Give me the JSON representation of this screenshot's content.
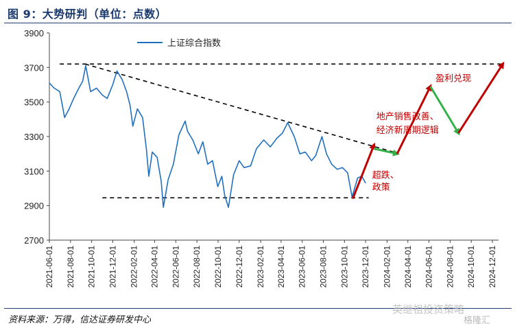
{
  "header": {
    "title": "图 9：大势研判（单位：点数）"
  },
  "footer": {
    "source": "资料来源：万得，信达证券研发中心"
  },
  "watermark": {
    "text": "英继祖投资策略",
    "brand": "格隆汇"
  },
  "colors": {
    "series": "#1f6fbf",
    "red_arrow": "#c00000",
    "green_arrow": "#33b24a",
    "dashed": "#000000",
    "title": "#1a3a6e"
  },
  "chart_data": {
    "type": "line",
    "title": "",
    "xlabel": "",
    "ylabel": "",
    "ylim": [
      2700,
      3900
    ],
    "yticks": [
      2700,
      2900,
      3100,
      3300,
      3500,
      3700,
      3900
    ],
    "x_tick_labels": [
      "2021-06-01",
      "2021-08-01",
      "2021-10-01",
      "2021-12-01",
      "2022-02-01",
      "2022-04-01",
      "2022-06-01",
      "2022-08-01",
      "2022-10-01",
      "2022-12-01",
      "2023-02-01",
      "2023-04-01",
      "2023-06-01",
      "2023-08-01",
      "2023-10-01",
      "2023-12-01",
      "2024-02-01",
      "2024-04-01",
      "2024-06-01",
      "2024-08-01",
      "2024-10-01",
      "2024-12-01"
    ],
    "legend": {
      "position": "top-left",
      "entries": [
        "上证综合指数"
      ]
    },
    "grid": false,
    "series": [
      {
        "name": "上证综合指数",
        "x": [
          "2021-06-01",
          "2021-06-15",
          "2021-07-01",
          "2021-07-15",
          "2021-07-28",
          "2021-08-10",
          "2021-08-25",
          "2021-09-05",
          "2021-09-14",
          "2021-09-28",
          "2021-10-15",
          "2021-11-01",
          "2021-11-15",
          "2021-12-01",
          "2021-12-13",
          "2021-12-28",
          "2022-01-10",
          "2022-01-20",
          "2022-01-28",
          "2022-02-10",
          "2022-02-25",
          "2022-03-08",
          "2022-03-15",
          "2022-03-25",
          "2022-04-08",
          "2022-04-20",
          "2022-04-26",
          "2022-05-10",
          "2022-05-25",
          "2022-06-10",
          "2022-06-28",
          "2022-07-05",
          "2022-07-20",
          "2022-08-05",
          "2022-08-18",
          "2022-09-01",
          "2022-09-15",
          "2022-09-30",
          "2022-10-12",
          "2022-10-20",
          "2022-10-31",
          "2022-11-15",
          "2022-12-01",
          "2022-12-15",
          "2023-01-03",
          "2023-01-20",
          "2023-02-10",
          "2023-03-01",
          "2023-03-20",
          "2023-04-05",
          "2023-04-20",
          "2023-05-09",
          "2023-05-25",
          "2023-06-10",
          "2023-06-28",
          "2023-07-10",
          "2023-07-28",
          "2023-08-10",
          "2023-08-25",
          "2023-09-10",
          "2023-09-25",
          "2023-10-10",
          "2023-10-23",
          "2023-11-08",
          "2023-11-20",
          "2023-12-01"
        ],
        "values": [
          3610,
          3580,
          3560,
          3410,
          3460,
          3520,
          3580,
          3620,
          3710,
          3560,
          3580,
          3540,
          3520,
          3600,
          3680,
          3630,
          3560,
          3480,
          3360,
          3460,
          3410,
          3230,
          3070,
          3210,
          3180,
          3040,
          2890,
          3050,
          3140,
          3310,
          3390,
          3330,
          3280,
          3200,
          3270,
          3140,
          3160,
          3010,
          3070,
          2960,
          2890,
          3080,
          3160,
          3120,
          3130,
          3230,
          3280,
          3240,
          3290,
          3320,
          3380,
          3300,
          3200,
          3210,
          3160,
          3190,
          3300,
          3200,
          3140,
          3110,
          3120,
          3090,
          2950,
          3060,
          3070,
          3030
        ]
      }
    ],
    "annotations": {
      "resistance_line": {
        "from": [
          "2021-09-12",
          3720
        ],
        "to": [
          "2024-02-20",
          3210
        ]
      },
      "peak_line": {
        "from": [
          "2021-07-01",
          3720
        ],
        "to": [
          "2024-12-25",
          3720
        ]
      },
      "support_line": {
        "from": [
          "2021-11-01",
          2945
        ],
        "to": [
          "2023-12-10",
          2945
        ]
      },
      "arrows": [
        {
          "color": "red",
          "from": [
            "2023-10-25",
            2940
          ],
          "to": [
            "2023-12-25",
            3250
          ]
        },
        {
          "color": "green",
          "from": [
            "2023-12-25",
            3230
          ],
          "to": [
            "2024-03-01",
            3200
          ]
        },
        {
          "color": "red",
          "from": [
            "2024-03-01",
            3200
          ],
          "to": [
            "2024-06-05",
            3590
          ]
        },
        {
          "color": "green",
          "from": [
            "2024-06-05",
            3590
          ],
          "to": [
            "2024-08-25",
            3320
          ]
        },
        {
          "color": "red",
          "from": [
            "2024-08-25",
            3320
          ],
          "to": [
            "2024-12-31",
            3720
          ]
        }
      ],
      "labels": [
        {
          "text": "超跌、",
          "at": [
            "2023-12-20",
            3060
          ]
        },
        {
          "text": "政策",
          "at": [
            "2023-12-20",
            2990
          ]
        },
        {
          "text": "地产销售改善、",
          "at": [
            "2024-01-01",
            3400
          ]
        },
        {
          "text": "经济新周期逻辑",
          "at": [
            "2024-01-01",
            3320
          ]
        },
        {
          "text": "盈利兑现",
          "at": [
            "2024-06-20",
            3620
          ]
        }
      ]
    }
  }
}
